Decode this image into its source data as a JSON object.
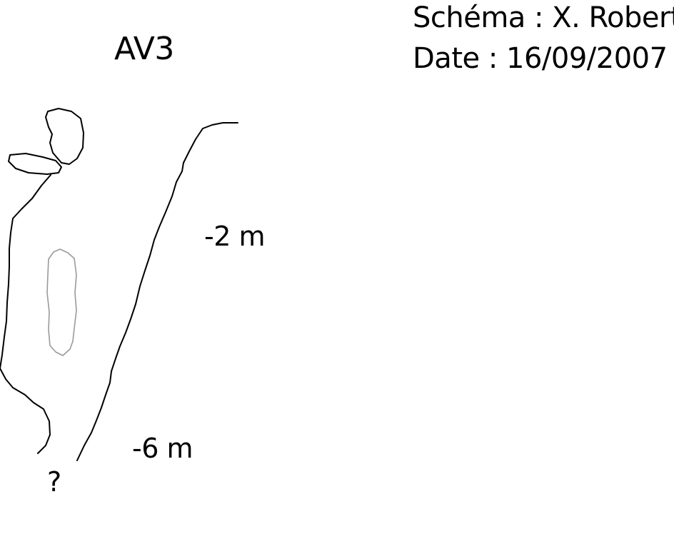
{
  "diagram": {
    "cave_name": "AV3",
    "author": "Schéma : X. Robert",
    "date": "Date :  16/09/2007",
    "depth_labels": [
      "-2 m",
      "-6 m"
    ],
    "unknown_continuation": "?",
    "colors": {
      "wall_line": "#000000",
      "pillar_outline": "#9a9a9a",
      "background": "#ffffff"
    }
  }
}
